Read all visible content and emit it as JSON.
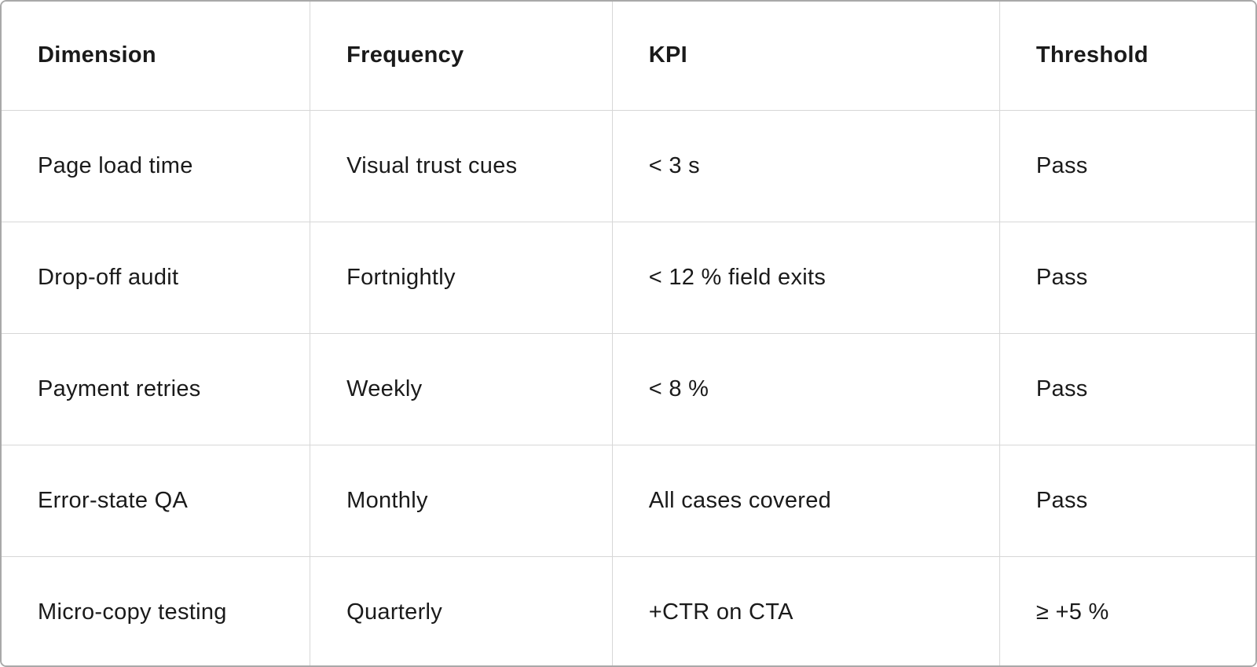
{
  "table": {
    "columns": [
      {
        "label": "Dimension"
      },
      {
        "label": "Frequency"
      },
      {
        "label": "KPI"
      },
      {
        "label": "Threshold"
      }
    ],
    "rows": [
      {
        "cells": [
          "Page load time",
          "Visual trust cues",
          "< 3 s",
          "Pass"
        ]
      },
      {
        "cells": [
          "Drop-off audit",
          "Fortnightly",
          "< 12 % field exits",
          "Pass"
        ]
      },
      {
        "cells": [
          "Payment retries",
          "Weekly",
          "< 8 %",
          "Pass"
        ]
      },
      {
        "cells": [
          "Error-state QA",
          "Monthly",
          "All cases covered",
          "Pass"
        ]
      },
      {
        "cells": [
          "Micro-copy testing",
          "Quarterly",
          "+CTR on CTA",
          "≥ +5 %"
        ]
      }
    ],
    "colors": {
      "text": "#1a1a1a",
      "grid_line": "#d7d7d7",
      "outer_border": "#a9a9a9",
      "background": "#ffffff"
    }
  }
}
